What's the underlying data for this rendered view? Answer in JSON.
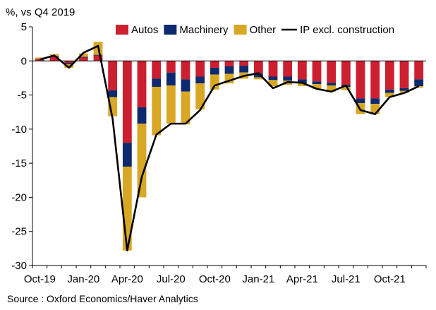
{
  "chart_data": {
    "type": "bar",
    "stacked": true,
    "title": "",
    "ylabel": "%, vs Q4 2019",
    "xlabel": "",
    "ylim": [
      -30,
      5
    ],
    "yticks": [
      5,
      0,
      -5,
      -10,
      -15,
      -20,
      -25,
      -30
    ],
    "x_tick_labels": [
      "Oct-19",
      "Jan-20",
      "Apr-20",
      "Jul-20",
      "Oct-20",
      "Jan-21",
      "Apr-21",
      "Jul-21",
      "Oct-21"
    ],
    "months": [
      "Oct-19",
      "Nov-19",
      "Dec-19",
      "Jan-20",
      "Feb-20",
      "Mar-20",
      "Apr-20",
      "May-20",
      "Jun-20",
      "Jul-20",
      "Aug-20",
      "Sep-20",
      "Oct-20",
      "Nov-20",
      "Dec-20",
      "Jan-21",
      "Feb-21",
      "Mar-21",
      "Apr-21",
      "May-21",
      "Jun-21",
      "Jul-21",
      "Aug-21",
      "Sep-21",
      "Oct-21",
      "Nov-21",
      "Dec-21"
    ],
    "legend_position": "top-right",
    "series": [
      {
        "name": "Autos",
        "color": "#cc1f2f",
        "values": [
          0.3,
          0.6,
          -0.3,
          0.5,
          0.8,
          -4.3,
          -12.0,
          -6.8,
          -2.6,
          -1.7,
          -2.7,
          -2.3,
          -1.0,
          -0.8,
          -0.7,
          -1.8,
          -2.3,
          -2.3,
          -2.7,
          -3.0,
          -3.2,
          -3.5,
          -5.5,
          -5.5,
          -4.2,
          -4.0,
          -2.7
        ]
      },
      {
        "name": "Machinery",
        "color": "#0e2a6e",
        "values": [
          0.0,
          0.1,
          -0.2,
          0.1,
          0.1,
          -1.0,
          -3.5,
          -2.4,
          -1.2,
          -1.9,
          -1.8,
          -1.0,
          -1.0,
          -1.1,
          -1.0,
          -0.6,
          -0.5,
          -0.6,
          -0.6,
          -0.4,
          -0.4,
          -0.3,
          -0.7,
          -0.8,
          -0.5,
          -0.4,
          -1.0
        ]
      },
      {
        "name": "Other",
        "color": "#d8a825",
        "values": [
          0.2,
          0.3,
          -0.5,
          0.5,
          1.9,
          -2.8,
          -12.3,
          -10.8,
          -7.1,
          -5.6,
          -4.8,
          -3.8,
          -2.2,
          -1.4,
          -0.9,
          -0.3,
          -0.9,
          -0.6,
          -0.4,
          -0.7,
          -0.9,
          -0.5,
          -1.6,
          -1.5,
          -0.6,
          -0.3,
          -0.2
        ]
      },
      {
        "name": "IP excl. construction",
        "type": "line",
        "color": "#000000",
        "values": [
          0.2,
          0.8,
          -1.0,
          1.2,
          2.2,
          -8.5,
          -27.8,
          -17.0,
          -10.8,
          -9.2,
          -9.2,
          -7.2,
          -3.6,
          -2.9,
          -2.2,
          -1.8,
          -4.0,
          -3.1,
          -3.2,
          -4.1,
          -4.5,
          -3.6,
          -7.2,
          -7.8,
          -5.3,
          -4.7,
          -3.7
        ]
      }
    ]
  },
  "source": "Source : Oxford Economics/Haver Analytics"
}
